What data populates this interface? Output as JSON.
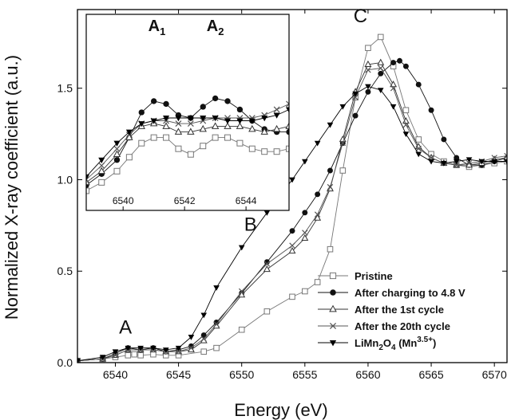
{
  "chart_data": [
    {
      "type": "line",
      "xlabel": "Energy (eV)",
      "ylabel": "Normalized X-ray coefficient (a.u.)",
      "xlim": [
        6537,
        6571
      ],
      "ylim": [
        0.0,
        1.93
      ],
      "xticks": [
        "6540",
        "6545",
        "6550",
        "6555",
        "6560",
        "6565",
        "6570"
      ],
      "yticks": [
        "0.0",
        "0.5",
        "1.0",
        "1.5"
      ],
      "legend_placement": "bottom-right",
      "annotations": [
        "A",
        "B",
        "C"
      ],
      "series": [
        {
          "name": "Pristine",
          "marker": "open-square",
          "color": "#777777",
          "x": [
            6537,
            6539,
            6540,
            6541,
            6541.5,
            6542,
            6543,
            6544,
            6545,
            6547,
            6548,
            6550,
            6552,
            6554,
            6555,
            6556,
            6557,
            6558,
            6559,
            6560,
            6561,
            6562,
            6563,
            6564,
            6565,
            6566,
            6567,
            6568,
            6569,
            6570,
            6571
          ],
          "y": [
            0.01,
            0.02,
            0.03,
            0.04,
            0.045,
            0.04,
            0.045,
            0.04,
            0.04,
            0.06,
            0.08,
            0.18,
            0.28,
            0.36,
            0.39,
            0.44,
            0.62,
            1.05,
            1.45,
            1.72,
            1.78,
            1.62,
            1.38,
            1.22,
            1.14,
            1.1,
            1.08,
            1.07,
            1.08,
            1.09,
            1.1
          ]
        },
        {
          "name": "After charging to 4.8 V",
          "marker": "filled-circle",
          "color": "#111111",
          "x": [
            6537,
            6539,
            6540,
            6541,
            6542,
            6543,
            6544,
            6545,
            6546,
            6547,
            6548,
            6550,
            6552,
            6554,
            6555,
            6556,
            6557,
            6558,
            6559,
            6560,
            6561,
            6562,
            6562.5,
            6563,
            6564,
            6565,
            6566,
            6567,
            6568,
            6569,
            6570,
            6571
          ],
          "y": [
            0.01,
            0.02,
            0.05,
            0.08,
            0.07,
            0.08,
            0.06,
            0.07,
            0.09,
            0.15,
            0.22,
            0.38,
            0.55,
            0.72,
            0.82,
            0.92,
            1.05,
            1.2,
            1.35,
            1.48,
            1.58,
            1.64,
            1.65,
            1.62,
            1.52,
            1.38,
            1.22,
            1.12,
            1.08,
            1.08,
            1.1,
            1.12
          ]
        },
        {
          "name": "After the 1st cycle",
          "marker": "open-triangle-up",
          "color": "#333333",
          "x": [
            6537,
            6539,
            6540,
            6541,
            6542,
            6543,
            6544,
            6545,
            6546,
            6547,
            6548,
            6550,
            6552,
            6554,
            6555,
            6556,
            6557,
            6558,
            6559,
            6560,
            6561,
            6562,
            6563,
            6564,
            6565,
            6566,
            6567,
            6568,
            6569,
            6570,
            6571
          ],
          "y": [
            0.01,
            0.02,
            0.04,
            0.07,
            0.07,
            0.07,
            0.06,
            0.06,
            0.07,
            0.12,
            0.2,
            0.37,
            0.51,
            0.61,
            0.68,
            0.79,
            0.95,
            1.22,
            1.48,
            1.63,
            1.64,
            1.52,
            1.32,
            1.18,
            1.12,
            1.09,
            1.08,
            1.08,
            1.09,
            1.11,
            1.12
          ]
        },
        {
          "name": "After the 20th cycle",
          "marker": "x",
          "color": "#555555",
          "x": [
            6537,
            6539,
            6540,
            6541,
            6542,
            6543,
            6544,
            6545,
            6546,
            6547,
            6548,
            6550,
            6552,
            6554,
            6555,
            6556,
            6557,
            6558,
            6559,
            6560,
            6561,
            6562,
            6563,
            6564,
            6565,
            6566,
            6567,
            6568,
            6569,
            6570,
            6571
          ],
          "y": [
            0.01,
            0.02,
            0.04,
            0.07,
            0.07,
            0.07,
            0.06,
            0.06,
            0.08,
            0.13,
            0.21,
            0.39,
            0.54,
            0.64,
            0.71,
            0.81,
            0.96,
            1.2,
            1.45,
            1.6,
            1.61,
            1.5,
            1.3,
            1.17,
            1.12,
            1.09,
            1.08,
            1.09,
            1.1,
            1.12,
            1.13
          ]
        },
        {
          "name": "LiMn2O4 (Mn3.5+)",
          "marker": "filled-triangle-down",
          "color": "#000000",
          "x": [
            6537,
            6539,
            6540,
            6541,
            6542,
            6543,
            6544,
            6545,
            6546,
            6547,
            6548,
            6550,
            6552,
            6554,
            6555,
            6556,
            6557,
            6558,
            6559,
            6560,
            6561,
            6562,
            6563,
            6564,
            6565,
            6566,
            6567,
            6568,
            6569,
            6570,
            6571
          ],
          "y": [
            0.01,
            0.03,
            0.06,
            0.08,
            0.08,
            0.08,
            0.07,
            0.08,
            0.14,
            0.26,
            0.41,
            0.63,
            0.82,
            1.0,
            1.1,
            1.2,
            1.3,
            1.4,
            1.47,
            1.51,
            1.49,
            1.4,
            1.25,
            1.14,
            1.1,
            1.09,
            1.1,
            1.11,
            1.1,
            1.1,
            1.1
          ]
        }
      ]
    },
    {
      "type": "line",
      "inset": true,
      "xlim": [
        6538.8,
        6545.4
      ],
      "ylim": [
        0.04,
        0.11
      ],
      "xticks": [
        "6540",
        "6542",
        "6544"
      ],
      "annotations": [
        "A1",
        "A2"
      ],
      "series": [
        {
          "name": "Pristine",
          "marker": "open-square",
          "color": "#777777",
          "x": [
            6538.8,
            6539.3,
            6539.8,
            6540.2,
            6540.6,
            6541.0,
            6541.4,
            6541.8,
            6542.2,
            6542.6,
            6543.0,
            6543.4,
            6543.8,
            6544.2,
            6544.6,
            6545.0,
            6545.4
          ],
          "y": [
            0.047,
            0.05,
            0.054,
            0.059,
            0.064,
            0.066,
            0.066,
            0.062,
            0.06,
            0.063,
            0.066,
            0.066,
            0.064,
            0.062,
            0.061,
            0.061,
            0.062
          ]
        },
        {
          "name": "After charging to 4.8 V",
          "marker": "filled-circle",
          "color": "#111111",
          "x": [
            6538.8,
            6539.3,
            6539.8,
            6540.2,
            6540.6,
            6541.0,
            6541.4,
            6541.8,
            6542.2,
            6542.6,
            6543.0,
            6543.4,
            6543.8,
            6544.2,
            6544.6,
            6545.0,
            6545.4
          ],
          "y": [
            0.049,
            0.053,
            0.058,
            0.066,
            0.075,
            0.079,
            0.078,
            0.074,
            0.073,
            0.077,
            0.08,
            0.079,
            0.076,
            0.072,
            0.069,
            0.068,
            0.068
          ]
        },
        {
          "name": "After the 1st cycle",
          "marker": "open-triangle-up",
          "color": "#333333",
          "x": [
            6538.8,
            6539.3,
            6539.8,
            6540.2,
            6540.6,
            6541.0,
            6541.4,
            6541.8,
            6542.2,
            6542.6,
            6543.0,
            6543.4,
            6543.8,
            6544.2,
            6544.6,
            6545.0,
            6545.4
          ],
          "y": [
            0.05,
            0.054,
            0.06,
            0.066,
            0.07,
            0.071,
            0.07,
            0.068,
            0.068,
            0.069,
            0.07,
            0.07,
            0.07,
            0.069,
            0.068,
            0.069,
            0.07
          ]
        },
        {
          "name": "After the 20th cycle",
          "marker": "x",
          "color": "#555555",
          "x": [
            6538.8,
            6539.3,
            6539.8,
            6540.2,
            6540.6,
            6541.0,
            6541.4,
            6541.8,
            6542.2,
            6542.6,
            6543.0,
            6543.4,
            6543.8,
            6544.2,
            6544.6,
            6545.0,
            6545.4
          ],
          "y": [
            0.051,
            0.056,
            0.062,
            0.067,
            0.071,
            0.072,
            0.072,
            0.071,
            0.071,
            0.072,
            0.073,
            0.073,
            0.073,
            0.073,
            0.074,
            0.076,
            0.078
          ]
        },
        {
          "name": "LiMn2O4 (Mn3.5+)",
          "marker": "filled-triangle-down",
          "color": "#000000",
          "x": [
            6538.8,
            6539.3,
            6539.8,
            6540.2,
            6540.6,
            6541.0,
            6541.4,
            6541.8,
            6542.2,
            6542.6,
            6543.0,
            6543.4,
            6543.8,
            6544.2,
            6544.6,
            6545.0,
            6545.4
          ],
          "y": [
            0.052,
            0.058,
            0.064,
            0.068,
            0.071,
            0.072,
            0.073,
            0.073,
            0.073,
            0.073,
            0.073,
            0.072,
            0.072,
            0.072,
            0.073,
            0.074,
            0.076
          ]
        }
      ]
    }
  ],
  "legend": {
    "entries": [
      {
        "label": "Pristine",
        "marker": "open-square",
        "color": "#777777"
      },
      {
        "label": "After charging to 4.8 V",
        "marker": "filled-circle",
        "color": "#111111"
      },
      {
        "label": "After the 1st cycle",
        "marker": "open-triangle-up",
        "color": "#333333"
      },
      {
        "label": "After the 20th cycle",
        "marker": "x",
        "color": "#555555"
      },
      {
        "label_parts": {
          "base": "LiMn",
          "sub1": "2",
          "mid": "O",
          "sub2": "4",
          "pre_sup": " (Mn",
          "sup": "3.5+",
          "post": ")"
        },
        "marker": "filled-triangle-down",
        "color": "#000000"
      }
    ]
  },
  "peaks": {
    "main": [
      {
        "label": "A",
        "x": 6540.8,
        "y": 0.16
      },
      {
        "label": "B",
        "x": 6550.7,
        "y": 0.72
      },
      {
        "label": "C",
        "x": 6559.4,
        "y": 1.86
      }
    ],
    "inset": [
      {
        "base": "A",
        "sub": "1",
        "x": 6541.1,
        "y": 0.104
      },
      {
        "base": "A",
        "sub": "2",
        "x": 6543.0,
        "y": 0.104
      }
    ]
  }
}
